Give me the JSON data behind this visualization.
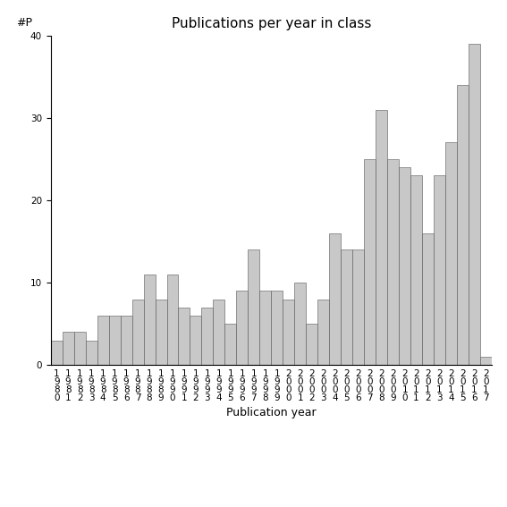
{
  "title": "Publications per year in class",
  "xlabel": "Publication year",
  "ylabel": "#P",
  "bar_color": "#c8c8c8",
  "bar_edgecolor": "#555555",
  "background_color": "#ffffff",
  "ylim": [
    0,
    40
  ],
  "yticks": [
    0,
    10,
    20,
    30,
    40
  ],
  "years": [
    1980,
    1981,
    1982,
    1983,
    1984,
    1985,
    1986,
    1987,
    1988,
    1989,
    1990,
    1991,
    1992,
    1993,
    1994,
    1995,
    1996,
    1997,
    1998,
    1999,
    2000,
    2001,
    2002,
    2003,
    2004,
    2005,
    2006,
    2007,
    2008,
    2009,
    2010,
    2011,
    2012,
    2013,
    2014,
    2015,
    2016,
    2017
  ],
  "values": [
    3,
    4,
    4,
    3,
    6,
    6,
    6,
    8,
    11,
    8,
    11,
    7,
    6,
    7,
    8,
    5,
    9,
    14,
    9,
    9,
    8,
    10,
    5,
    8,
    16,
    14,
    14,
    25,
    31,
    25,
    24,
    23,
    16,
    23,
    27,
    34,
    39,
    1
  ],
  "title_fontsize": 11,
  "axis_fontsize": 9,
  "tick_fontsize": 7.5
}
